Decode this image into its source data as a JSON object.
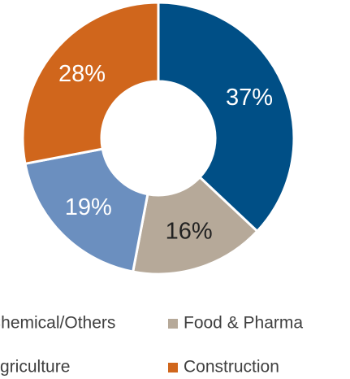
{
  "chart_data": {
    "type": "pie",
    "categories": [
      "Chemical/Others",
      "Food & Pharma",
      "Agriculture",
      "Construction"
    ],
    "values": [
      37,
      16,
      19,
      28
    ],
    "value_labels": [
      "37%",
      "16%",
      "19%",
      "28%"
    ],
    "colors": [
      "#004f86",
      "#b6a999",
      "#6b8fbf",
      "#d0661c"
    ],
    "legend": "bottom"
  }
}
